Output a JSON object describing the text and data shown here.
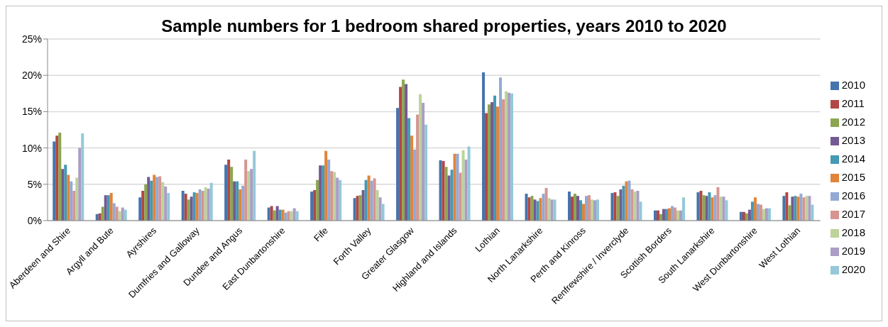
{
  "chart_data": {
    "type": "bar",
    "title": "Sample numbers for 1 bedroom shared properties, years 2010 to 2020",
    "categories": [
      "Aberdeen and Shire",
      "Argyll and Bute",
      "Ayrshires",
      "Dumfries and Galloway",
      "Dundee and Angus",
      "East Dunbartonshire",
      "Fife",
      "Forth Valley",
      "Greater Glasgow",
      "Highland and Islands",
      "Lothian",
      "North Lanarkshire",
      "Perth and Kinross",
      "Renfrewshire / Inverclyde",
      "Scottish Borders",
      "South Lanarkshire",
      "West Dunbartonshire",
      "West Lothian"
    ],
    "series": [
      {
        "name": "2010",
        "color": "#4674ac",
        "values": [
          10.9,
          0.9,
          3.2,
          4.1,
          7.7,
          1.8,
          4.0,
          3.1,
          15.5,
          8.3,
          20.4,
          3.7,
          4.0,
          3.8,
          1.4,
          3.9,
          1.2,
          3.4
        ]
      },
      {
        "name": "2011",
        "color": "#b14744",
        "values": [
          11.7,
          1.0,
          4.1,
          3.7,
          8.4,
          2.0,
          4.2,
          3.4,
          18.4,
          8.2,
          14.8,
          3.2,
          3.3,
          3.9,
          1.4,
          4.1,
          1.2,
          3.9
        ]
      },
      {
        "name": "2012",
        "color": "#8ca650",
        "values": [
          12.1,
          1.9,
          5.0,
          2.9,
          7.4,
          1.4,
          5.6,
          3.5,
          19.4,
          7.4,
          16.0,
          3.4,
          3.7,
          3.4,
          0.9,
          3.5,
          1.0,
          2.1
        ]
      },
      {
        "name": "2013",
        "color": "#735a93",
        "values": [
          7.1,
          3.5,
          6.0,
          3.3,
          5.4,
          2.0,
          7.6,
          4.2,
          18.8,
          6.2,
          16.3,
          2.9,
          3.4,
          4.3,
          1.6,
          3.4,
          1.5,
          3.3
        ]
      },
      {
        "name": "2014",
        "color": "#4499b4",
        "values": [
          7.7,
          3.5,
          5.5,
          3.9,
          5.4,
          1.5,
          7.6,
          5.6,
          14.1,
          7.0,
          17.2,
          2.7,
          2.8,
          4.8,
          1.6,
          3.9,
          2.6,
          3.4
        ]
      },
      {
        "name": "2015",
        "color": "#e0843c",
        "values": [
          6.3,
          3.8,
          6.3,
          3.8,
          4.3,
          1.5,
          9.6,
          6.2,
          11.7,
          9.2,
          15.7,
          3.1,
          2.3,
          5.4,
          1.7,
          3.2,
          3.2,
          3.3
        ]
      },
      {
        "name": "2016",
        "color": "#93a9d4",
        "values": [
          5.4,
          2.4,
          6.0,
          4.3,
          4.8,
          1.1,
          8.4,
          5.5,
          9.8,
          9.2,
          19.7,
          3.7,
          3.4,
          5.5,
          2.0,
          3.5,
          2.3,
          3.7
        ]
      },
      {
        "name": "2017",
        "color": "#d69592",
        "values": [
          4.1,
          1.9,
          6.1,
          4.1,
          8.4,
          1.3,
          6.8,
          5.8,
          14.6,
          6.6,
          16.7,
          4.5,
          3.5,
          4.3,
          1.8,
          4.6,
          2.2,
          3.2
        ]
      },
      {
        "name": "2018",
        "color": "#bcd39b",
        "values": [
          5.9,
          1.3,
          5.3,
          4.6,
          6.8,
          1.3,
          6.7,
          4.2,
          17.4,
          9.7,
          17.8,
          3.1,
          2.9,
          4.0,
          1.4,
          3.3,
          1.6,
          3.4
        ]
      },
      {
        "name": "2019",
        "color": "#ab9dc4",
        "values": [
          10.0,
          1.8,
          4.7,
          4.4,
          7.1,
          1.7,
          5.9,
          3.2,
          16.2,
          8.4,
          17.6,
          2.9,
          2.8,
          4.1,
          1.4,
          3.3,
          1.7,
          3.4
        ]
      },
      {
        "name": "2020",
        "color": "#95c8d8",
        "values": [
          12.0,
          1.5,
          3.8,
          5.2,
          9.6,
          1.3,
          5.6,
          2.3,
          13.2,
          10.2,
          17.5,
          2.9,
          2.9,
          2.6,
          3.2,
          2.8,
          1.7,
          2.2
        ]
      }
    ],
    "ylim": [
      0,
      25
    ],
    "yticks": [
      {
        "value": 0,
        "label": "0%"
      },
      {
        "value": 5,
        "label": "5%"
      },
      {
        "value": 10,
        "label": "10%"
      },
      {
        "value": 15,
        "label": "15%"
      },
      {
        "value": 20,
        "label": "20%"
      },
      {
        "value": 25,
        "label": "25%"
      }
    ],
    "grid": "y",
    "legend": "right"
  }
}
